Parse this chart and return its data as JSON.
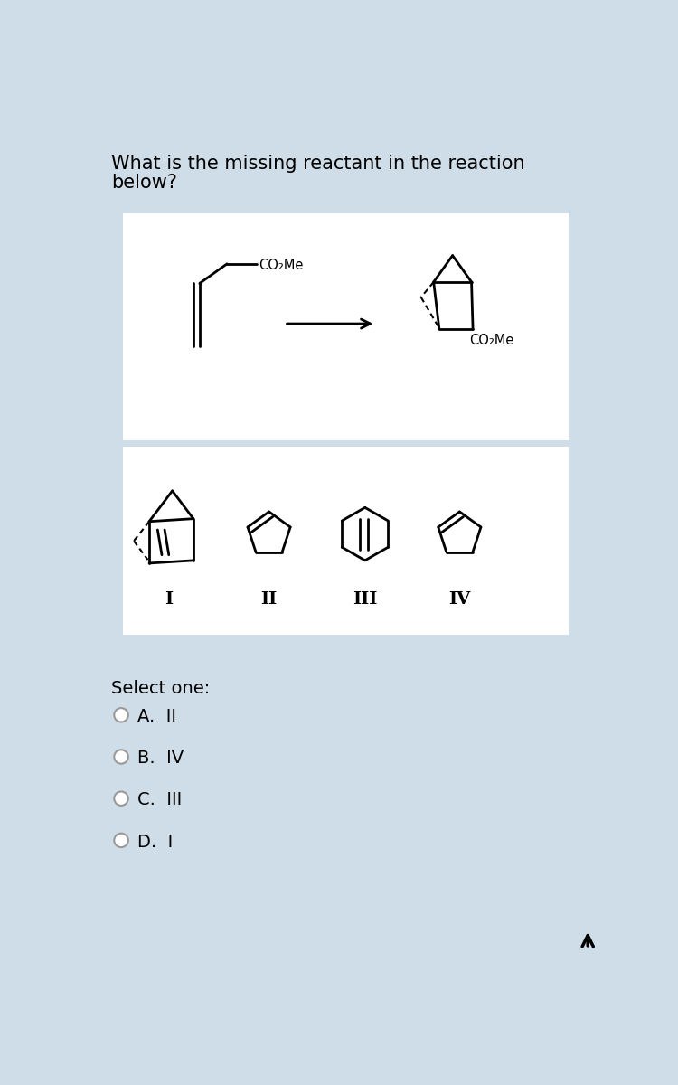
{
  "bg_color": "#cfdde8",
  "white_box_color": "#ffffff",
  "question_text_line1": "What is the missing reactant in the reaction",
  "question_text_line2": "below?",
  "select_text": "Select one:",
  "options": [
    "A.  II",
    "B.  IV",
    "C.  III",
    "D.  I"
  ],
  "roman_labels": [
    "I",
    "II",
    "III",
    "IV"
  ],
  "font_size_question": 15,
  "font_size_options": 14,
  "font_size_roman": 13
}
